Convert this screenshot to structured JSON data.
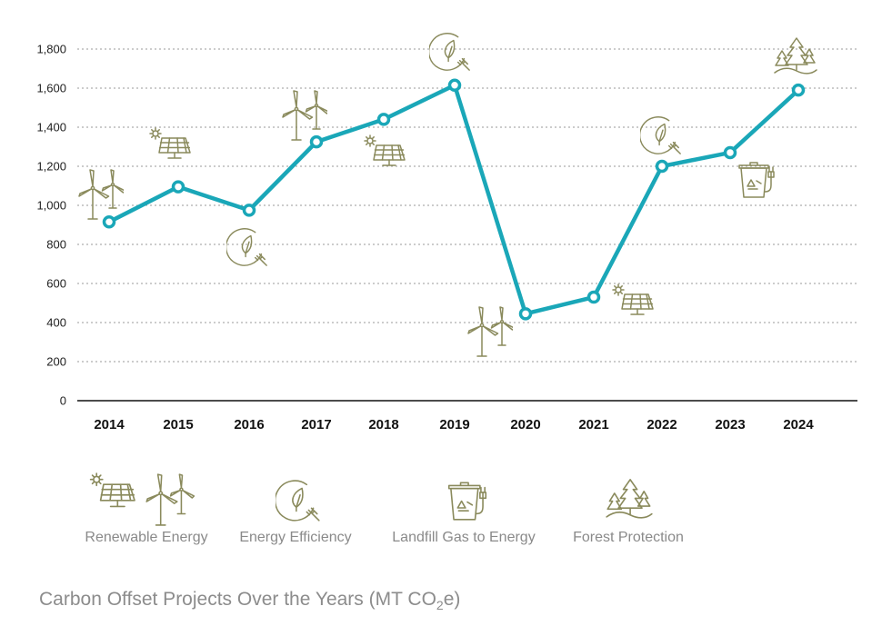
{
  "chart_data": {
    "type": "line",
    "x": [
      "2014",
      "2015",
      "2016",
      "2017",
      "2018",
      "2019",
      "2020",
      "2021",
      "2022",
      "2023",
      "2024"
    ],
    "series": [
      {
        "values": [
          915,
          1095,
          975,
          1325,
          1440,
          1615,
          445,
          530,
          1200,
          1270,
          1590
        ]
      }
    ],
    "point_icons": [
      "wind-turbine",
      "solar-panel",
      "energy-efficiency",
      "wind-turbine",
      "solar-panel",
      "energy-efficiency",
      "wind-turbine",
      "solar-panel",
      "energy-efficiency",
      "landfill-gas",
      "forest"
    ],
    "ylim": [
      0,
      1800
    ],
    "yticks": [
      "0",
      "200",
      "400",
      "600",
      "800",
      "1,000",
      "1,200",
      "1,400",
      "1,600",
      "1,800"
    ],
    "ytick_values": [
      0,
      200,
      400,
      600,
      800,
      1000,
      1200,
      1400,
      1600,
      1800
    ],
    "grid": "horizontal-dotted",
    "line_color": "#1aa7b8",
    "icon_color": "#8a8a5c",
    "legend": [
      {
        "label": "Renewable Energy",
        "icons": [
          "solar-panel",
          "wind-turbine"
        ]
      },
      {
        "label": "Energy Efficiency",
        "icons": [
          "energy-efficiency"
        ]
      },
      {
        "label": "Landfill Gas to Energy",
        "icons": [
          "landfill-gas"
        ]
      },
      {
        "label": "Forest Protection",
        "icons": [
          "forest"
        ]
      }
    ],
    "legend_placement": "bottom"
  },
  "caption": {
    "text": "Carbon Offset Projects Over the Years (MT CO",
    "sub": "2",
    "tail": "e)"
  }
}
